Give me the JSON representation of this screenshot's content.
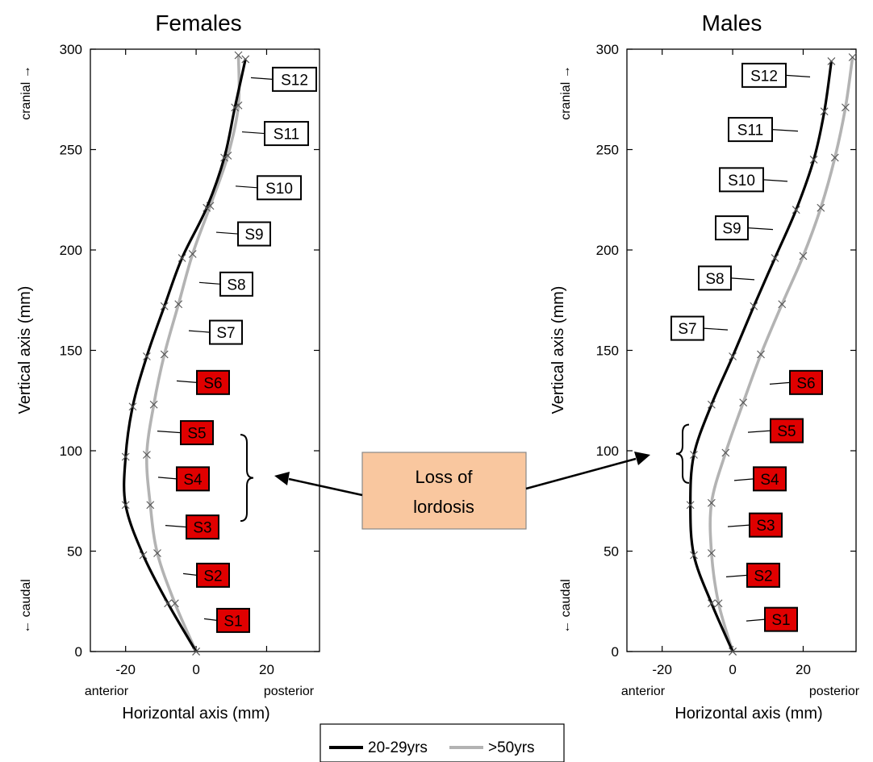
{
  "legend": {
    "young": {
      "label": "20-29yrs",
      "color": "#000000"
    },
    "old": {
      "label": ">50yrs",
      "color": "#b3b3b3"
    }
  },
  "callout": {
    "line1": "Loss of",
    "line2": "lordosis",
    "fill": "#f9c79f"
  },
  "segment_colors": {
    "lower": "#e00000",
    "upper": "#ffffff"
  },
  "chart_data": [
    {
      "type": "line",
      "title": "Females",
      "xlabel": "Horizontal  axis (mm)",
      "ylabel": "Vertical axis (mm)",
      "x_direction_labels": {
        "left": "anterior",
        "right": "posterior"
      },
      "y_direction_labels": {
        "top": "cranial →",
        "bottom": "← caudal"
      },
      "xlim": [
        -30,
        35
      ],
      "ylim": [
        0,
        300
      ],
      "xticks": [
        -20,
        0,
        20
      ],
      "yticks": [
        0,
        50,
        100,
        150,
        200,
        250,
        300
      ],
      "grid": false,
      "series": [
        {
          "name": "20-29yrs",
          "color": "#000000",
          "points": [
            [
              0,
              0
            ],
            [
              -8,
              24
            ],
            [
              -15,
              48
            ],
            [
              -20,
              73
            ],
            [
              -20,
              97
            ],
            [
              -18,
              122
            ],
            [
              -14,
              147
            ],
            [
              -9,
              172
            ],
            [
              -4,
              196
            ],
            [
              3,
              221
            ],
            [
              8,
              246
            ],
            [
              11,
              271
            ],
            [
              14,
              295
            ]
          ]
        },
        {
          "name": ">50yrs",
          "color": "#b3b3b3",
          "points": [
            [
              0,
              0
            ],
            [
              -6,
              24
            ],
            [
              -11,
              49
            ],
            [
              -13,
              73
            ],
            [
              -14,
              98
            ],
            [
              -12,
              123
            ],
            [
              -9,
              148
            ],
            [
              -5,
              173
            ],
            [
              -1,
              198
            ],
            [
              4,
              222
            ],
            [
              9,
              247
            ],
            [
              12,
              272
            ],
            [
              12,
              297
            ]
          ]
        }
      ],
      "segments": [
        {
          "label": "S1",
          "x": 0,
          "y": 15.5,
          "lower": true
        },
        {
          "label": "S2",
          "x": 0,
          "y": 38,
          "lower": true
        },
        {
          "label": "S3",
          "x": 0,
          "y": 62,
          "lower": true
        },
        {
          "label": "S4",
          "x": 0,
          "y": 86,
          "lower": true
        },
        {
          "label": "S5",
          "x": 0,
          "y": 109,
          "lower": true
        },
        {
          "label": "S6",
          "x": 0,
          "y": 134,
          "lower": true
        },
        {
          "label": "S7",
          "x": 0,
          "y": 159,
          "lower": false
        },
        {
          "label": "S8",
          "x": 0,
          "y": 183,
          "lower": false
        },
        {
          "label": "S9",
          "x": 0,
          "y": 208,
          "lower": false
        },
        {
          "label": "S10",
          "x": 0,
          "y": 231,
          "lower": false
        },
        {
          "label": "S11",
          "x": 0,
          "y": 258,
          "lower": false
        },
        {
          "label": "S12",
          "x": 0,
          "y": 285,
          "lower": false
        }
      ],
      "bracket_range": [
        65,
        108
      ]
    },
    {
      "type": "line",
      "title": "Males",
      "xlabel": "Horizontal  axis (mm)",
      "ylabel": "Vertical axis (mm)",
      "x_direction_labels": {
        "left": "anterior",
        "right": "posterior"
      },
      "y_direction_labels": {
        "top": "cranial →",
        "bottom": "← caudal"
      },
      "xlim": [
        -30,
        35
      ],
      "ylim": [
        0,
        300
      ],
      "xticks": [
        -20,
        0,
        20
      ],
      "yticks": [
        0,
        50,
        100,
        150,
        200,
        250,
        300
      ],
      "grid": false,
      "series": [
        {
          "name": "20-29yrs",
          "color": "#000000",
          "points": [
            [
              0,
              0
            ],
            [
              -6,
              24
            ],
            [
              -11,
              48
            ],
            [
              -12,
              73
            ],
            [
              -11,
              98
            ],
            [
              -6,
              123
            ],
            [
              0,
              147
            ],
            [
              6,
              172
            ],
            [
              12,
              196
            ],
            [
              18,
              220
            ],
            [
              23,
              245
            ],
            [
              26,
              269
            ],
            [
              28,
              294
            ]
          ]
        },
        {
          "name": ">50yrs",
          "color": "#b3b3b3",
          "points": [
            [
              0,
              0
            ],
            [
              -4,
              24
            ],
            [
              -6,
              49
            ],
            [
              -6,
              74
            ],
            [
              -2,
              99
            ],
            [
              3,
              124
            ],
            [
              8,
              148
            ],
            [
              14,
              173
            ],
            [
              20,
              197
            ],
            [
              25,
              221
            ],
            [
              29,
              246
            ],
            [
              32,
              271
            ],
            [
              34,
              296
            ]
          ]
        }
      ],
      "segments": [
        {
          "label": "S1",
          "x": 0,
          "y": 16,
          "lower": true
        },
        {
          "label": "S2",
          "x": 0,
          "y": 38,
          "lower": true
        },
        {
          "label": "S3",
          "x": 0,
          "y": 63,
          "lower": true
        },
        {
          "label": "S4",
          "x": 0,
          "y": 86,
          "lower": true
        },
        {
          "label": "S5",
          "x": 0,
          "y": 110,
          "lower": true
        },
        {
          "label": "S6",
          "x": 0,
          "y": 134,
          "lower": true
        },
        {
          "label": "S7",
          "x": 0,
          "y": 161,
          "lower": false
        },
        {
          "label": "S8",
          "x": 0,
          "y": 186,
          "lower": false
        },
        {
          "label": "S9",
          "x": 0,
          "y": 211,
          "lower": false
        },
        {
          "label": "S10",
          "x": 0,
          "y": 235,
          "lower": false
        },
        {
          "label": "S11",
          "x": 0,
          "y": 260,
          "lower": false
        },
        {
          "label": "S12",
          "x": 0,
          "y": 287,
          "lower": false
        }
      ],
      "bracket_range": [
        84,
        113
      ]
    }
  ]
}
